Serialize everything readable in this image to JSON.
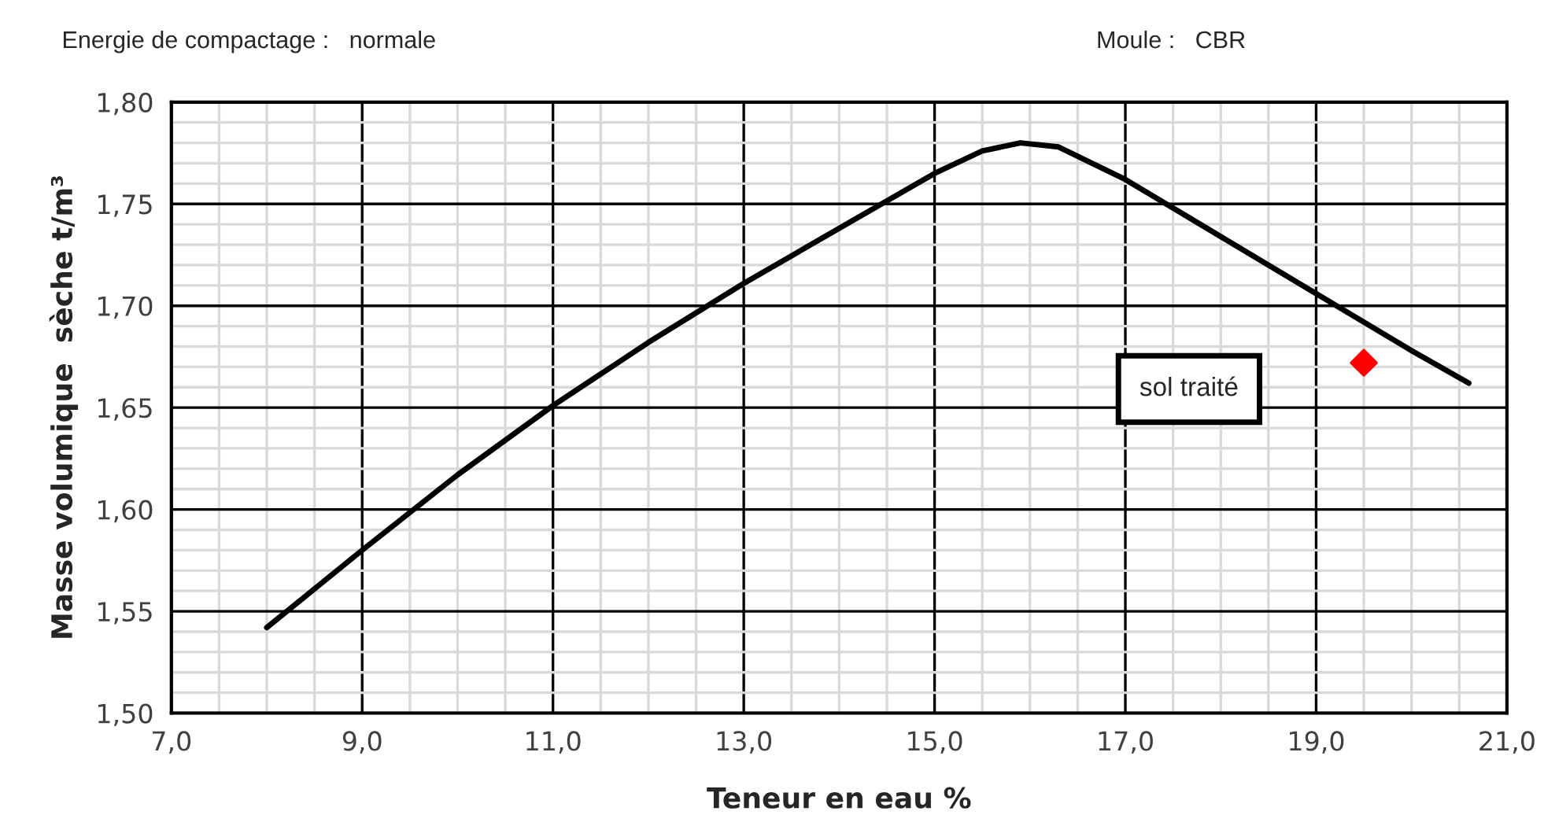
{
  "chart_data": {
    "type": "line",
    "xlabel": "Teneur en eau %",
    "ylabel": "Masse volumique  sèche t/m³",
    "annotations": [
      "Energie de compactage :   normale",
      "Moule :   CBR"
    ],
    "series": [
      {
        "color": "#000000",
        "x": [
          8.0,
          9.0,
          10.0,
          11.0,
          12.0,
          13.0,
          14.0,
          15.0,
          15.5,
          15.9,
          16.3,
          17.0,
          18.0,
          19.0,
          20.0,
          20.6
        ],
        "values": [
          1.542,
          1.58,
          1.617,
          1.651,
          1.682,
          1.711,
          1.738,
          1.765,
          1.776,
          1.78,
          1.778,
          1.762,
          1.734,
          1.706,
          1.678,
          1.662
        ],
        "marker": "none"
      },
      {
        "type": "scatter",
        "name": "sol traité",
        "color": "#ff0000",
        "x": [
          19.5
        ],
        "values": [
          1.672
        ],
        "marker": "diamond"
      }
    ],
    "xlim": [
      7.0,
      21.0
    ],
    "ylim": [
      1.5,
      1.8
    ],
    "xticks": [
      {
        "value": 7,
        "label": "7,0"
      },
      {
        "value": 9,
        "label": "9,0"
      },
      {
        "value": 11,
        "label": "11,0"
      },
      {
        "value": 13,
        "label": "13,0"
      },
      {
        "value": 15,
        "label": "15,0"
      },
      {
        "value": 17,
        "label": "17,0"
      },
      {
        "value": 19,
        "label": "19,0"
      },
      {
        "value": 21,
        "label": "21,0"
      }
    ],
    "yticks": [
      {
        "value": 1.5,
        "label": "1,50"
      },
      {
        "value": 1.55,
        "label": "1,55"
      },
      {
        "value": 1.6,
        "label": "1,60"
      },
      {
        "value": 1.65,
        "label": "1,65"
      },
      {
        "value": 1.7,
        "label": "1,70"
      },
      {
        "value": 1.75,
        "label": "1,75"
      },
      {
        "value": 1.8,
        "label": "1,80"
      }
    ],
    "grid": true,
    "legend": false
  }
}
